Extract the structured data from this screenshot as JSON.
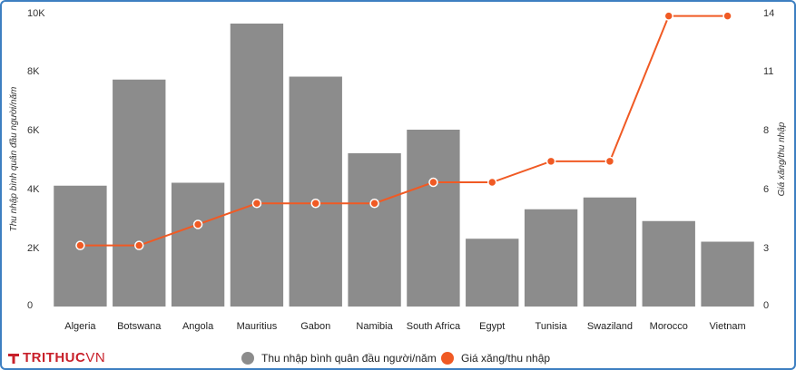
{
  "chart_data": {
    "type": "bar",
    "categories": [
      "Algeria",
      "Botswana",
      "Angola",
      "Mauritius",
      "Gabon",
      "Namibia",
      "South Africa",
      "Egypt",
      "Tunisia",
      "Swaziland",
      "Morocco",
      "Vietnam"
    ],
    "series": [
      {
        "name": "Thu nhập bình quân đầu người/năm",
        "type": "bar",
        "axis": "left",
        "color": "#8c8c8c",
        "values": [
          4100,
          7700,
          4200,
          9600,
          7800,
          5200,
          6000,
          2300,
          3300,
          3700,
          2900,
          2200
        ]
      },
      {
        "name": "Giá xăng/thu nhập",
        "type": "line",
        "axis": "right",
        "color": "#f05a24",
        "values": [
          2.9,
          2.9,
          3.9,
          4.9,
          4.9,
          4.9,
          5.9,
          5.9,
          6.9,
          6.9,
          13.8,
          13.8
        ]
      }
    ],
    "left_axis": {
      "title": "Thu nhập bình quân đầu người/năm",
      "range": [
        0,
        10000
      ],
      "ticks": [
        0,
        2000,
        4000,
        6000,
        8000,
        10000
      ],
      "tick_labels": [
        "0",
        "2K",
        "4K",
        "6K",
        "8K",
        "10K"
      ]
    },
    "right_axis": {
      "title": "Giá xăng/thu nhập",
      "range": [
        0,
        14
      ],
      "ticks": [
        0,
        2.8,
        5.6,
        8.4,
        11.2,
        14
      ],
      "tick_labels": [
        "0",
        "3",
        "6",
        "8",
        "11",
        "14"
      ]
    },
    "legend": {
      "position": "bottom-center",
      "items": [
        "Thu nhập bình quân đầu người/năm",
        "Giá xăng/thu nhập"
      ]
    },
    "grid": false
  },
  "brand": {
    "logo_part1": "TRITHUC",
    "logo_part2": "VN",
    "color": "#c8202a"
  },
  "frame_color": "#3d7fc1"
}
